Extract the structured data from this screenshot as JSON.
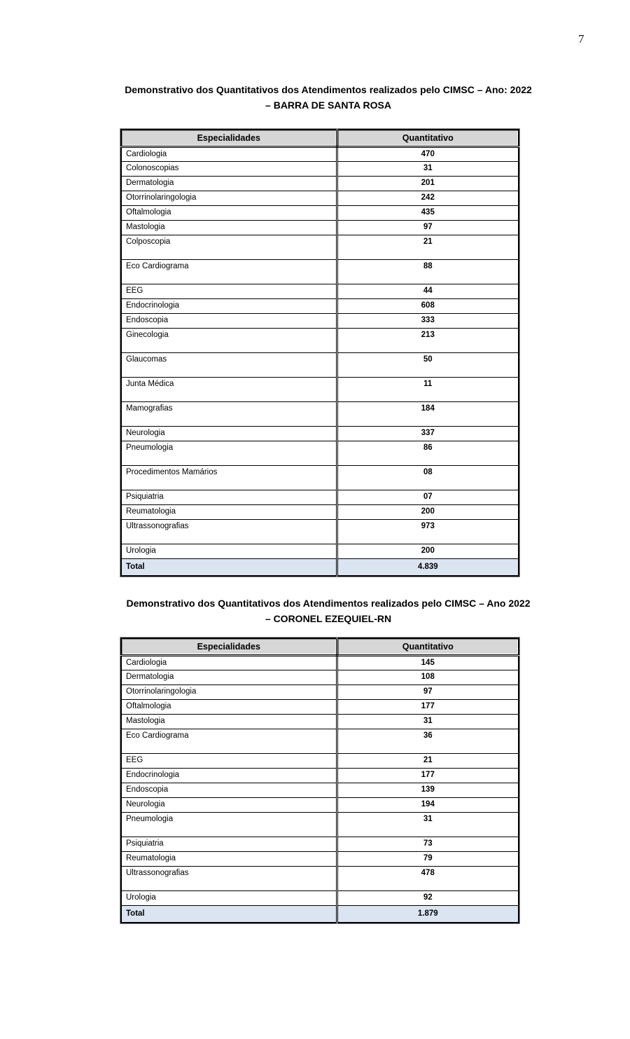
{
  "page": {
    "number": "7"
  },
  "colors": {
    "header_bg": "#d6d6d6",
    "total_bg": "#dbe5f1",
    "border": "#000000"
  },
  "tables": [
    {
      "title_line1": "Demonstrativo dos Quantitativos dos Atendimentos realizados pelo CIMSC – Ano: 2022",
      "title_line2": "– BARRA DE SANTA ROSA",
      "columns": [
        "Especialidades",
        "Quantitativo"
      ],
      "rows": [
        {
          "label": "Cardiologia",
          "value": "470",
          "tall": false
        },
        {
          "label": "Colonoscopias",
          "value": "31",
          "tall": false
        },
        {
          "label": "Dermatologia",
          "value": "201",
          "tall": false
        },
        {
          "label": "Otorrinolaringologia",
          "value": "242",
          "tall": false
        },
        {
          "label": "Oftalmologia",
          "value": "435",
          "tall": false
        },
        {
          "label": "Mastologia",
          "value": "97",
          "tall": false
        },
        {
          "label": "Colposcopia",
          "value": "21",
          "tall": true
        },
        {
          "label": "Eco Cardiograma",
          "value": "88",
          "tall": true
        },
        {
          "label": "EEG",
          "value": "44",
          "tall": false
        },
        {
          "label": "Endocrinologia",
          "value": "608",
          "tall": false
        },
        {
          "label": "Endoscopia",
          "value": "333",
          "tall": false
        },
        {
          "label": "Ginecologia",
          "value": "213",
          "tall": true
        },
        {
          "label": "Glaucomas",
          "value": "50",
          "tall": true
        },
        {
          "label": "Junta Médica",
          "value": "11",
          "tall": true
        },
        {
          "label": "Mamografias",
          "value": "184",
          "tall": true
        },
        {
          "label": "Neurologia",
          "value": "337",
          "tall": false
        },
        {
          "label": "Pneumologia",
          "value": "86",
          "tall": true
        },
        {
          "label": "Procedimentos Mamários",
          "value": "08",
          "tall": true
        },
        {
          "label": "Psiquiatria",
          "value": "07",
          "tall": false
        },
        {
          "label": "Reumatologia",
          "value": "200",
          "tall": false
        },
        {
          "label": "Ultrassonografias",
          "value": "973",
          "tall": true
        },
        {
          "label": "Urologia",
          "value": "200",
          "tall": false
        }
      ],
      "total": {
        "label": "Total",
        "value": "4.839"
      }
    },
    {
      "title_line1": "Demonstrativo dos Quantitativos dos Atendimentos realizados pelo CIMSC – Ano 2022",
      "title_line2": "– CORONEL EZEQUIEL-RN",
      "columns": [
        "Especialidades",
        "Quantitativo"
      ],
      "rows": [
        {
          "label": "Cardiologia",
          "value": "145",
          "tall": false
        },
        {
          "label": "Dermatologia",
          "value": "108",
          "tall": false
        },
        {
          "label": "Otorrinolaringologia",
          "value": "97",
          "tall": false
        },
        {
          "label": "Oftalmologia",
          "value": "177",
          "tall": false
        },
        {
          "label": "Mastologia",
          "value": "31",
          "tall": false
        },
        {
          "label": "Eco Cardiograma",
          "value": "36",
          "tall": true
        },
        {
          "label": "EEG",
          "value": "21",
          "tall": false
        },
        {
          "label": "Endocrinologia",
          "value": "177",
          "tall": false
        },
        {
          "label": "Endoscopia",
          "value": "139",
          "tall": false
        },
        {
          "label": "Neurologia",
          "value": "194",
          "tall": false
        },
        {
          "label": "Pneumologia",
          "value": "31",
          "tall": true
        },
        {
          "label": "Psiquiatria",
          "value": "73",
          "tall": false
        },
        {
          "label": "Reumatologia",
          "value": "79",
          "tall": false
        },
        {
          "label": "Ultrassonografias",
          "value": "478",
          "tall": true
        },
        {
          "label": "Urologia",
          "value": "92",
          "tall": false
        }
      ],
      "total": {
        "label": "Total",
        "value": "1.879"
      }
    }
  ]
}
